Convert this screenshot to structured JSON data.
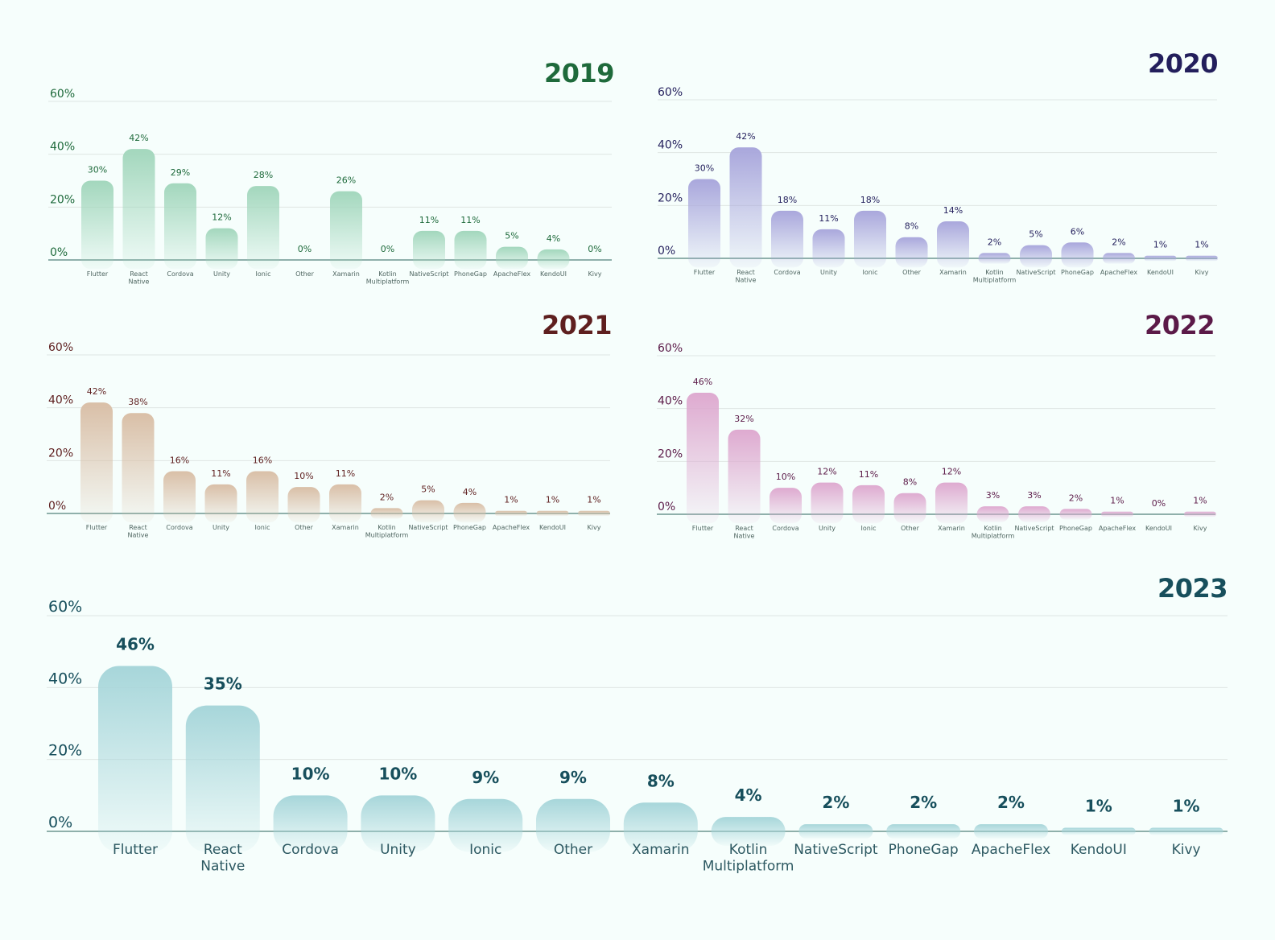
{
  "categories": [
    "Flutter",
    "React Native",
    "Cordova",
    "Unity",
    "Ionic",
    "Other",
    "Xamarin",
    "Kotlin Multiplatform",
    "NativeScript",
    "PhoneGap",
    "ApacheFlex",
    "KendoUI",
    "Kivy"
  ],
  "chart_data": [
    {
      "type": "bar",
      "title": "2019",
      "color": "#1e6a3b",
      "bar_color": "#a3d7bd",
      "categories": [
        "Flutter",
        "React Native",
        "Cordova",
        "Unity",
        "Ionic",
        "Other",
        "Xamarin",
        "Kotlin Multiplatform",
        "NativeScript",
        "PhoneGap",
        "ApacheFlex",
        "KendoUI",
        "Kivy"
      ],
      "values": [
        30,
        42,
        29,
        12,
        28,
        0,
        26,
        0,
        11,
        11,
        5,
        4,
        0
      ],
      "value_labels": [
        "30%",
        "42%",
        "29%",
        "12%",
        "28%",
        "0%",
        "26%",
        "0%",
        "11%",
        "11%",
        "5%",
        "4%",
        "0%"
      ],
      "yticks": [
        "0%",
        "20%",
        "40%",
        "60%"
      ],
      "ylim": [
        0,
        60
      ],
      "grid": true
    },
    {
      "type": "bar",
      "title": "2020",
      "color": "#231f5c",
      "bar_color": "#a9a7dc",
      "categories": [
        "Flutter",
        "React Native",
        "Cordova",
        "Unity",
        "Ionic",
        "Other",
        "Xamarin",
        "Kotlin Multiplatform",
        "NativeScript",
        "PhoneGap",
        "ApacheFlex",
        "KendoUI",
        "Kivy"
      ],
      "values": [
        30,
        42,
        18,
        11,
        18,
        8,
        14,
        2,
        5,
        6,
        2,
        1,
        1
      ],
      "value_labels": [
        "30%",
        "42%",
        "18%",
        "11%",
        "18%",
        "8%",
        "14%",
        "2%",
        "5%",
        "6%",
        "2%",
        "1%",
        "1%"
      ],
      "yticks": [
        "0%",
        "20%",
        "40%",
        "60%"
      ],
      "ylim": [
        0,
        60
      ],
      "grid": true
    },
    {
      "type": "bar",
      "title": "2021",
      "color": "#5e1f1f",
      "bar_color": "#d9bfa7",
      "categories": [
        "Flutter",
        "React Native",
        "Cordova",
        "Unity",
        "Ionic",
        "Other",
        "Xamarin",
        "Kotlin Multiplatform",
        "NativeScript",
        "PhoneGap",
        "ApacheFlex",
        "KendoUI",
        "Kivy"
      ],
      "values": [
        42,
        38,
        16,
        11,
        16,
        10,
        11,
        2,
        5,
        4,
        1,
        1,
        1
      ],
      "value_labels": [
        "42%",
        "38%",
        "16%",
        "11%",
        "16%",
        "10%",
        "11%",
        "2%",
        "5%",
        "4%",
        "1%",
        "1%",
        "1%"
      ],
      "yticks": [
        "0%",
        "20%",
        "40%",
        "60%"
      ],
      "ylim": [
        0,
        60
      ],
      "grid": true
    },
    {
      "type": "bar",
      "title": "2022",
      "color": "#5b1a48",
      "bar_color": "#deaad0",
      "categories": [
        "Flutter",
        "React Native",
        "Cordova",
        "Unity",
        "Ionic",
        "Other",
        "Xamarin",
        "Kotlin Multiplatform",
        "NativeScript",
        "PhoneGap",
        "ApacheFlex",
        "KendoUI",
        "Kivy"
      ],
      "values": [
        46,
        32,
        10,
        12,
        11,
        8,
        12,
        3,
        3,
        2,
        1,
        0,
        1
      ],
      "value_labels": [
        "46%",
        "32%",
        "10%",
        "12%",
        "11%",
        "8%",
        "12%",
        "3%",
        "3%",
        "2%",
        "1%",
        "0%",
        "1%"
      ],
      "yticks": [
        "0%",
        "20%",
        "40%",
        "60%"
      ],
      "ylim": [
        0,
        60
      ],
      "grid": true
    },
    {
      "type": "bar",
      "title": "2023",
      "color": "#174f5c",
      "bar_color": "#a7d6da",
      "categories": [
        "Flutter",
        "React Native",
        "Cordova",
        "Unity",
        "Ionic",
        "Other",
        "Xamarin",
        "Kotlin Multiplatform",
        "NativeScript",
        "PhoneGap",
        "ApacheFlex",
        "KendoUI",
        "Kivy"
      ],
      "values": [
        46,
        35,
        10,
        10,
        9,
        9,
        8,
        4,
        2,
        2,
        2,
        1,
        1
      ],
      "value_labels": [
        "46%",
        "35%",
        "10%",
        "10%",
        "9%",
        "9%",
        "8%",
        "4%",
        "2%",
        "2%",
        "2%",
        "1%",
        "1%"
      ],
      "yticks": [
        "0%",
        "20%",
        "40%",
        "60%"
      ],
      "ylim": [
        0,
        60
      ],
      "grid": true
    }
  ]
}
